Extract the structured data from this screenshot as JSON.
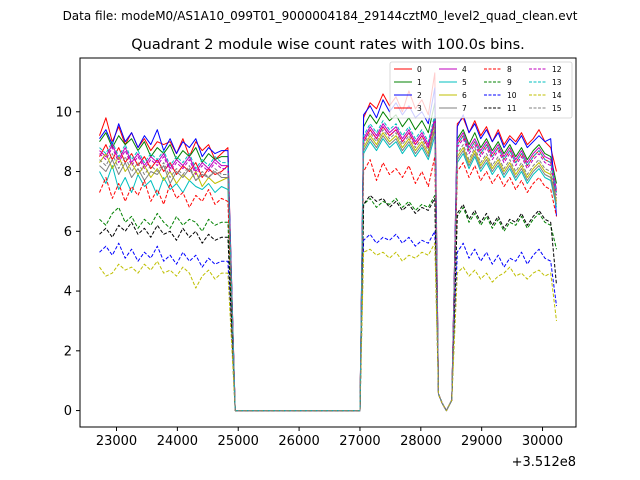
{
  "chart_data": {
    "type": "line",
    "suptitle": "Data file: modeM0/AS1A10_099T01_9000004184_29144cztM0_level2_quad_clean.evt",
    "title": "Quadrant 2 module wise count rates with 100.0s bins.",
    "xlabel": "",
    "ylabel": "",
    "x_offset_label": "+3.512e8",
    "xlim": [
      22400,
      30550
    ],
    "ylim": [
      -0.55,
      11.8
    ],
    "x_ticks": [
      23000,
      24000,
      25000,
      26000,
      27000,
      28000,
      29000,
      30000
    ],
    "x_tick_labels": [
      "23000",
      "24000",
      "25000",
      "26000",
      "27000",
      "28000",
      "29000",
      "30000"
    ],
    "y_ticks": [
      0,
      2,
      4,
      6,
      8,
      10
    ],
    "y_tick_labels": [
      "0",
      "2",
      "4",
      "6",
      "8",
      "10"
    ],
    "legend_location": "upper-right",
    "legend_ncol": 4,
    "x_common": [
      22720,
      24830,
      24950,
      27000,
      27060,
      28230,
      28290,
      28350,
      28420,
      28510,
      28600,
      30230
    ],
    "series": [
      {
        "name": "0",
        "color": "#ff0000",
        "dash": false,
        "v1": [
          9.2,
          9.8,
          9.0,
          9.5,
          8.9,
          9.3,
          8.8,
          9.1,
          8.7,
          9.0,
          8.9,
          9.0,
          8.6,
          9.1,
          8.5,
          9.0,
          8.7,
          8.9,
          8.4,
          8.6,
          8.8
        ],
        "v2": [
          9.8,
          10.3,
          10.1,
          10.6,
          10.2,
          10.5,
          10.0,
          10.7,
          10.1,
          10.4,
          9.9,
          11.3
        ],
        "v3": [
          9.6,
          9.8,
          9.3,
          9.7,
          9.2,
          9.5,
          9.0,
          9.4,
          8.9,
          9.2,
          9.0,
          9.3,
          8.9,
          9.1,
          9.4,
          9.0,
          8.8,
          8.0
        ]
      },
      {
        "name": "1",
        "color": "#008000",
        "dash": false,
        "v1": [
          9.0,
          9.3,
          8.8,
          9.2,
          8.9,
          9.1,
          8.7,
          9.0,
          8.5,
          8.8,
          8.6,
          8.9,
          8.4,
          8.7,
          8.5,
          8.8,
          8.3,
          8.6,
          8.4,
          8.5,
          8.5
        ],
        "v2": [
          9.5,
          9.9,
          9.6,
          10.0,
          9.7,
          9.9,
          9.5,
          9.8,
          9.4,
          9.7,
          9.3,
          10.3
        ],
        "v3": [
          9.1,
          9.4,
          8.9,
          9.3,
          8.8,
          9.1,
          8.7,
          9.0,
          8.6,
          8.9,
          8.5,
          8.8,
          8.4,
          8.7,
          8.9,
          8.6,
          8.5,
          7.6
        ]
      },
      {
        "name": "2",
        "color": "#0000ff",
        "dash": false,
        "v1": [
          9.1,
          9.4,
          8.9,
          9.6,
          9.0,
          9.3,
          8.8,
          9.2,
          8.9,
          9.4,
          8.7,
          9.1,
          8.6,
          9.0,
          8.8,
          9.1,
          8.5,
          8.8,
          8.6,
          8.7,
          8.7
        ],
        "v2": [
          9.9,
          10.2,
          9.8,
          10.4,
          10.0,
          10.3,
          9.9,
          10.2,
          9.8,
          10.0,
          9.6,
          10.8
        ],
        "v3": [
          9.5,
          9.9,
          9.3,
          9.6,
          9.1,
          9.4,
          9.0,
          9.3,
          8.8,
          9.1,
          8.9,
          9.2,
          8.8,
          9.0,
          9.2,
          9.0,
          9.1,
          6.5
        ]
      },
      {
        "name": "3",
        "color": "#ff0000",
        "dash": false,
        "v1": [
          8.5,
          8.9,
          8.4,
          8.8,
          8.3,
          8.6,
          8.2,
          8.5,
          8.1,
          8.4,
          8.0,
          8.3,
          7.9,
          8.2,
          8.0,
          8.3,
          7.8,
          8.1,
          7.9,
          8.0,
          8.2
        ],
        "v2": [
          9.0,
          9.4,
          9.1,
          9.5,
          9.2,
          9.4,
          9.0,
          9.3,
          8.9,
          9.2,
          8.8,
          9.7
        ],
        "v3": [
          8.9,
          9.2,
          8.7,
          9.0,
          8.6,
          8.9,
          8.5,
          8.8,
          8.4,
          8.7,
          8.3,
          8.6,
          8.2,
          8.5,
          8.7,
          8.4,
          8.3,
          7.3
        ]
      },
      {
        "name": "4",
        "color": "#bf00bf",
        "dash": false,
        "v1": [
          8.7,
          8.5,
          8.9,
          8.4,
          8.8,
          8.3,
          8.6,
          8.2,
          8.5,
          8.3,
          8.6,
          8.1,
          8.4,
          8.2,
          8.5,
          8.0,
          8.3,
          8.1,
          8.4,
          8.2,
          8.2
        ],
        "v2": [
          9.1,
          9.5,
          9.2,
          9.6,
          9.3,
          9.5,
          9.1,
          9.4,
          9.0,
          9.3,
          8.9,
          9.8
        ],
        "v3": [
          9.0,
          9.3,
          8.8,
          9.1,
          8.7,
          9.0,
          8.6,
          8.9,
          8.5,
          8.8,
          8.4,
          8.7,
          8.3,
          8.6,
          8.8,
          8.5,
          8.4,
          7.4
        ]
      },
      {
        "name": "5",
        "color": "#00bfbf",
        "dash": false,
        "v1": [
          8.0,
          7.6,
          8.2,
          7.4,
          7.8,
          7.3,
          7.9,
          7.5,
          7.7,
          7.2,
          7.8,
          7.4,
          7.6,
          7.3,
          7.7,
          7.5,
          7.4,
          7.6,
          7.3,
          7.5,
          7.4
        ],
        "v2": [
          8.6,
          9.0,
          8.7,
          9.1,
          8.8,
          9.0,
          8.6,
          8.9,
          8.5,
          8.8,
          8.4,
          9.2
        ],
        "v3": [
          8.3,
          8.6,
          8.1,
          8.5,
          8.0,
          8.3,
          7.9,
          8.2,
          7.8,
          8.1,
          7.7,
          8.0,
          7.6,
          7.9,
          8.1,
          7.8,
          7.7,
          6.8
        ]
      },
      {
        "name": "6",
        "color": "#bfbf00",
        "dash": false,
        "v1": [
          8.3,
          8.6,
          8.1,
          8.5,
          8.0,
          8.3,
          7.9,
          8.2,
          7.8,
          8.1,
          7.7,
          8.0,
          7.6,
          7.9,
          7.7,
          8.0,
          7.5,
          7.8,
          7.6,
          7.7,
          7.8
        ],
        "v2": [
          8.8,
          9.2,
          8.9,
          9.3,
          9.0,
          9.2,
          8.8,
          9.1,
          8.7,
          9.0,
          8.6,
          9.5
        ],
        "v3": [
          8.5,
          8.8,
          8.3,
          8.7,
          8.2,
          8.5,
          8.1,
          8.4,
          8.0,
          8.3,
          7.9,
          8.2,
          7.8,
          8.1,
          8.3,
          8.0,
          7.9,
          7.0
        ]
      },
      {
        "name": "7",
        "color": "#808080",
        "dash": false,
        "v1": [
          8.2,
          8.0,
          8.4,
          7.9,
          8.3,
          7.8,
          8.1,
          7.7,
          8.0,
          7.9,
          8.2,
          7.6,
          8.0,
          7.8,
          8.1,
          7.7,
          7.9,
          7.8,
          8.0,
          7.8,
          7.8
        ],
        "v2": [
          8.7,
          9.1,
          8.8,
          9.2,
          8.9,
          9.1,
          8.7,
          9.0,
          8.6,
          8.9,
          8.5,
          9.4
        ],
        "v3": [
          8.4,
          8.7,
          8.2,
          8.6,
          8.1,
          8.4,
          8.0,
          8.3,
          7.9,
          8.2,
          7.8,
          8.1,
          7.7,
          8.0,
          8.2,
          7.9,
          7.8,
          6.9
        ]
      },
      {
        "name": "8",
        "color": "#ff0000",
        "dash": true,
        "v1": [
          7.3,
          7.8,
          7.1,
          7.6,
          7.0,
          7.5,
          7.2,
          7.7,
          7.0,
          7.4,
          6.9,
          7.6,
          7.1,
          7.3,
          6.8,
          7.2,
          7.0,
          7.4,
          6.9,
          7.1,
          7.0
        ],
        "v2": [
          8.0,
          8.4,
          7.7,
          8.3,
          7.9,
          8.1,
          7.8,
          8.2,
          7.6,
          8.0,
          7.5,
          8.5
        ],
        "v3": [
          8.0,
          8.3,
          7.8,
          8.2,
          7.7,
          8.0,
          7.6,
          7.9,
          7.5,
          7.8,
          7.4,
          7.7,
          7.3,
          7.6,
          7.8,
          7.5,
          7.4,
          6.5
        ]
      },
      {
        "name": "9",
        "color": "#008000",
        "dash": true,
        "v1": [
          6.4,
          6.2,
          6.6,
          6.8,
          6.3,
          6.5,
          6.1,
          6.4,
          6.2,
          6.6,
          6.3,
          6.1,
          6.5,
          6.2,
          6.4,
          6.3,
          6.0,
          6.4,
          6.2,
          6.3,
          6.3
        ],
        "v2": [
          6.9,
          7.1,
          6.8,
          7.0,
          6.9,
          7.1,
          6.8,
          7.0,
          6.7,
          6.9,
          6.8,
          7.2
        ],
        "v3": [
          6.5,
          6.8,
          6.3,
          6.6,
          6.2,
          6.5,
          6.1,
          6.4,
          6.0,
          6.3,
          6.2,
          6.5,
          6.1,
          6.4,
          6.6,
          6.3,
          6.2,
          5.4
        ]
      },
      {
        "name": "10",
        "color": "#0000ff",
        "dash": true,
        "v1": [
          5.3,
          5.5,
          5.2,
          5.6,
          5.1,
          5.4,
          5.0,
          5.3,
          5.1,
          5.5,
          5.0,
          5.2,
          4.9,
          5.3,
          5.0,
          5.2,
          4.8,
          5.1,
          4.9,
          5.0,
          5.0
        ],
        "v2": [
          5.7,
          5.9,
          5.6,
          5.8,
          5.7,
          5.9,
          5.6,
          5.8,
          5.5,
          5.7,
          5.6,
          6.0
        ],
        "v3": [
          5.3,
          5.6,
          5.1,
          5.4,
          5.0,
          5.3,
          4.9,
          5.2,
          4.8,
          5.1,
          5.0,
          5.3,
          4.9,
          5.2,
          5.4,
          5.1,
          5.0,
          3.5
        ]
      },
      {
        "name": "11",
        "color": "#000000",
        "dash": true,
        "v1": [
          5.9,
          6.1,
          5.8,
          6.2,
          6.0,
          6.3,
          5.9,
          6.1,
          5.8,
          6.2,
          5.9,
          6.0,
          5.7,
          6.1,
          5.8,
          6.0,
          5.6,
          5.9,
          5.7,
          5.8,
          5.8
        ],
        "v2": [
          6.9,
          7.2,
          7.0,
          7.1,
          6.8,
          7.0,
          6.7,
          6.9,
          6.6,
          6.8,
          6.7,
          7.1
        ],
        "v3": [
          6.6,
          6.9,
          6.4,
          6.7,
          6.3,
          6.6,
          6.2,
          6.5,
          6.1,
          6.4,
          6.3,
          6.6,
          6.2,
          6.5,
          6.7,
          6.4,
          6.3,
          4.2
        ]
      },
      {
        "name": "12",
        "color": "#bf00bf",
        "dash": true,
        "v1": [
          8.6,
          8.4,
          8.8,
          8.3,
          8.7,
          8.2,
          8.5,
          8.1,
          8.4,
          8.2,
          8.5,
          8.0,
          8.3,
          8.1,
          8.4,
          7.9,
          8.2,
          8.0,
          8.3,
          8.1,
          8.1
        ],
        "v2": [
          9.0,
          9.4,
          9.1,
          9.5,
          9.2,
          9.4,
          9.0,
          9.3,
          8.9,
          9.2,
          8.8,
          9.7
        ],
        "v3": [
          8.8,
          9.1,
          8.6,
          8.9,
          8.5,
          8.8,
          8.4,
          8.7,
          8.3,
          8.6,
          8.2,
          8.5,
          8.1,
          8.4,
          8.6,
          8.3,
          8.2,
          7.2
        ]
      },
      {
        "name": "13",
        "color": "#00bfbf",
        "dash": true,
        "v1": [
          8.8,
          8.6,
          9.0,
          8.5,
          8.9,
          8.4,
          8.7,
          8.3,
          8.6,
          8.4,
          8.7,
          8.2,
          8.5,
          8.3,
          8.6,
          8.1,
          8.4,
          8.2,
          8.5,
          8.3,
          8.3
        ],
        "v2": [
          9.2,
          9.6,
          9.3,
          9.7,
          9.4,
          9.6,
          9.2,
          9.5,
          9.1,
          9.4,
          9.0,
          9.9
        ],
        "v3": [
          8.9,
          9.2,
          8.7,
          9.0,
          8.6,
          8.9,
          8.5,
          8.8,
          8.4,
          8.7,
          8.3,
          8.6,
          8.2,
          8.5,
          8.7,
          8.4,
          8.3,
          7.3
        ]
      },
      {
        "name": "14",
        "color": "#bfbf00",
        "dash": true,
        "v1": [
          4.8,
          4.5,
          4.6,
          4.9,
          4.7,
          4.8,
          4.6,
          4.9,
          4.7,
          5.0,
          4.6,
          4.7,
          4.5,
          4.8,
          4.6,
          4.1,
          4.5,
          4.7,
          4.4,
          4.6,
          4.6
        ],
        "v2": [
          5.3,
          5.4,
          5.2,
          5.3,
          5.1,
          5.3,
          5.0,
          5.2,
          5.1,
          5.3,
          5.2,
          5.6
        ],
        "v3": [
          4.6,
          4.8,
          4.5,
          4.7,
          4.4,
          4.6,
          4.3,
          4.5,
          4.6,
          4.8,
          4.5,
          4.6,
          4.4,
          4.6,
          4.7,
          4.5,
          4.6,
          3.0
        ]
      },
      {
        "name": "15",
        "color": "#808080",
        "dash": true,
        "v1": [
          8.4,
          8.2,
          8.6,
          8.1,
          8.5,
          8.0,
          8.3,
          7.9,
          8.2,
          8.0,
          8.3,
          7.8,
          8.1,
          7.9,
          8.2,
          7.7,
          8.0,
          7.8,
          8.1,
          7.9,
          7.9
        ],
        "v2": [
          8.9,
          9.3,
          9.0,
          9.4,
          9.1,
          9.3,
          8.9,
          9.2,
          8.8,
          9.1,
          8.7,
          9.6
        ],
        "v3": [
          8.6,
          8.9,
          8.4,
          8.8,
          8.3,
          8.6,
          8.2,
          8.5,
          8.1,
          8.4,
          8.0,
          8.3,
          7.9,
          8.2,
          8.4,
          8.1,
          8.0,
          7.1
        ]
      }
    ]
  }
}
